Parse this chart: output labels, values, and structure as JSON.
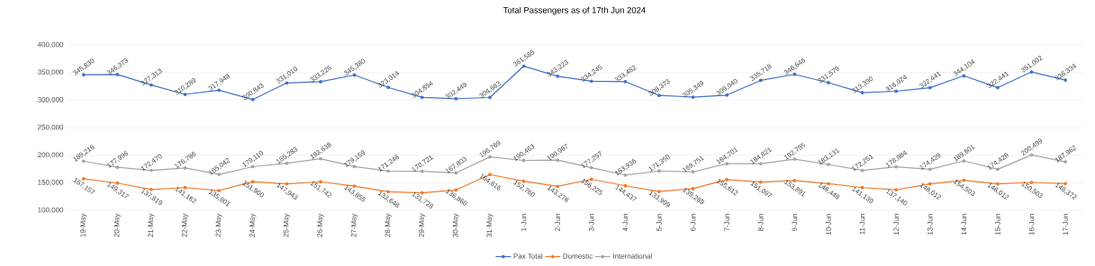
{
  "chart_data": {
    "type": "line",
    "title": "Total Passengers as of 17th Jun 2024",
    "categories": [
      "19-May",
      "20-May",
      "21-May",
      "22-May",
      "23-May",
      "24-May",
      "25-May",
      "26-May",
      "27-May",
      "28-May",
      "29-May",
      "30-May",
      "31-May",
      "1-Jun",
      "2-Jun",
      "3-Jun",
      "4-Jun",
      "5-Jun",
      "6-Jun",
      "7-Jun",
      "8-Jun",
      "9-Jun",
      "10-Jun",
      "11-Jun",
      "12-Jun",
      "13-Jun",
      "14-Jun",
      "15-Jun",
      "16-Jun",
      "17-Jun"
    ],
    "series": [
      {
        "name": "Pax Total",
        "color": "#4472c4",
        "values": [
          345830,
          346373,
          327313,
          310289,
          317948,
          300843,
          331010,
          333226,
          345380,
          323014,
          304894,
          302449,
          304663,
          361585,
          343223,
          334245,
          333482,
          308373,
          305349,
          309040,
          335718,
          346646,
          331579,
          313390,
          316024,
          322441,
          344104,
          322441,
          351002,
          336334
        ],
        "value_labels": [
          "345,830",
          "346,373",
          "327,313",
          "310,289",
          "317,948",
          "300,843",
          "331,010",
          "333,226",
          "345,380",
          "323,014",
          "304,894",
          "302,449",
          "304,663",
          "361,585",
          "343,223",
          "334,245",
          "333,482",
          "308,373",
          "305,349",
          "309,040",
          "335,718",
          "346,646",
          "331,579",
          "313,390",
          "316,024",
          "322,441",
          "344,104",
          "322,441",
          "351,002",
          "336,334"
        ]
      },
      {
        "name": "Domestic",
        "color": "#ed7d31",
        "values": [
          157157,
          149317,
          137819,
          141162,
          135801,
          151900,
          147943,
          151742,
          143855,
          133648,
          131728,
          136860,
          164816,
          152760,
          143278,
          156225,
          144437,
          133999,
          139289,
          155612,
          151097,
          153891,
          148448,
          141139,
          137140,
          148012,
          154503,
          148012,
          150503,
          148372
        ],
        "value_labels": [
          "157,157",
          "149,317",
          "137,819",
          "141,162",
          "135,801",
          "151,900",
          "147,943",
          "151,742",
          "143,855",
          "133,648",
          "131,728",
          "136,860",
          "164,816",
          "152,760",
          "143,278",
          "156,225",
          "144,437",
          "133,999",
          "139,289",
          "155,612",
          "151,097",
          "153,891",
          "148,448",
          "141,139",
          "137,140",
          "148,012",
          "154,503",
          "148,012",
          "150,503",
          "148,372"
        ]
      },
      {
        "name": "International",
        "color": "#a5a5a5",
        "values": [
          189216,
          177996,
          172470,
          176786,
          165042,
          179110,
          185283,
          193638,
          179159,
          171246,
          170721,
          167803,
          196769,
          190463,
          190967,
          177257,
          163936,
          171350,
          169751,
          184701,
          184621,
          192755,
          183131,
          172251,
          178884,
          174429,
          189601,
          174429,
          200499,
          187962
        ],
        "value_labels": [
          "189,216",
          "177,996",
          "172,470",
          "176,786",
          "165,042",
          "179,110",
          "185,283",
          "193,638",
          "179,159",
          "171,246",
          "170,721",
          "167,803",
          "196,769",
          "190,463",
          "190,967",
          "177,257",
          "163,936",
          "171,350",
          "169,751",
          "184,701",
          "184,621",
          "192,755",
          "183,131",
          "172,251",
          "178,884",
          "174,429",
          "189,601",
          "174,429",
          "200,499",
          "187,962"
        ]
      }
    ],
    "ylim": [
      100000,
      400000
    ],
    "yticks": [
      {
        "value": 100000,
        "label": "100,000"
      },
      {
        "value": 150000,
        "label": "150,000"
      },
      {
        "value": 200000,
        "label": "200,000"
      },
      {
        "value": 250000,
        "label": "250,000"
      },
      {
        "value": 300000,
        "label": "300,000"
      },
      {
        "value": 350000,
        "label": "350,000"
      },
      {
        "value": 400000,
        "label": "400,000"
      }
    ],
    "grid": "y",
    "legend": "bottom",
    "marker": "circle",
    "line_style": "solid"
  }
}
